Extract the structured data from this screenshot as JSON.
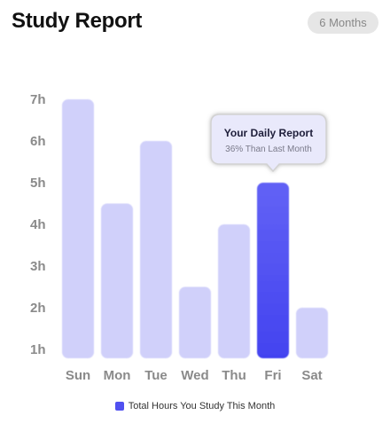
{
  "header": {
    "title": "Study Report",
    "period_label": "6 Months"
  },
  "colors": {
    "bar": "#d0d0fa",
    "highlight_top": "#6262f5",
    "highlight_bottom": "#4343f0",
    "legend": "#5050f0"
  },
  "tooltip": {
    "title": "Your Daily Report",
    "subtitle": "36% Than Last Month"
  },
  "chart_data": {
    "type": "bar",
    "categories": [
      "Sun",
      "Mon",
      "Tue",
      "Wed",
      "Thu",
      "Fri",
      "Sat"
    ],
    "series": [
      {
        "name": "Total Hours You Study This Month",
        "values": [
          7.0,
          4.5,
          6.0,
          2.5,
          4.0,
          5.0,
          2.0
        ]
      }
    ],
    "highlight_category": "Fri",
    "y_ticks": [
      "1h",
      "2h",
      "3h",
      "4h",
      "5h",
      "6h",
      "7h"
    ],
    "ylim": [
      1,
      7
    ],
    "grid": false,
    "legend_position": "bottom-center"
  }
}
